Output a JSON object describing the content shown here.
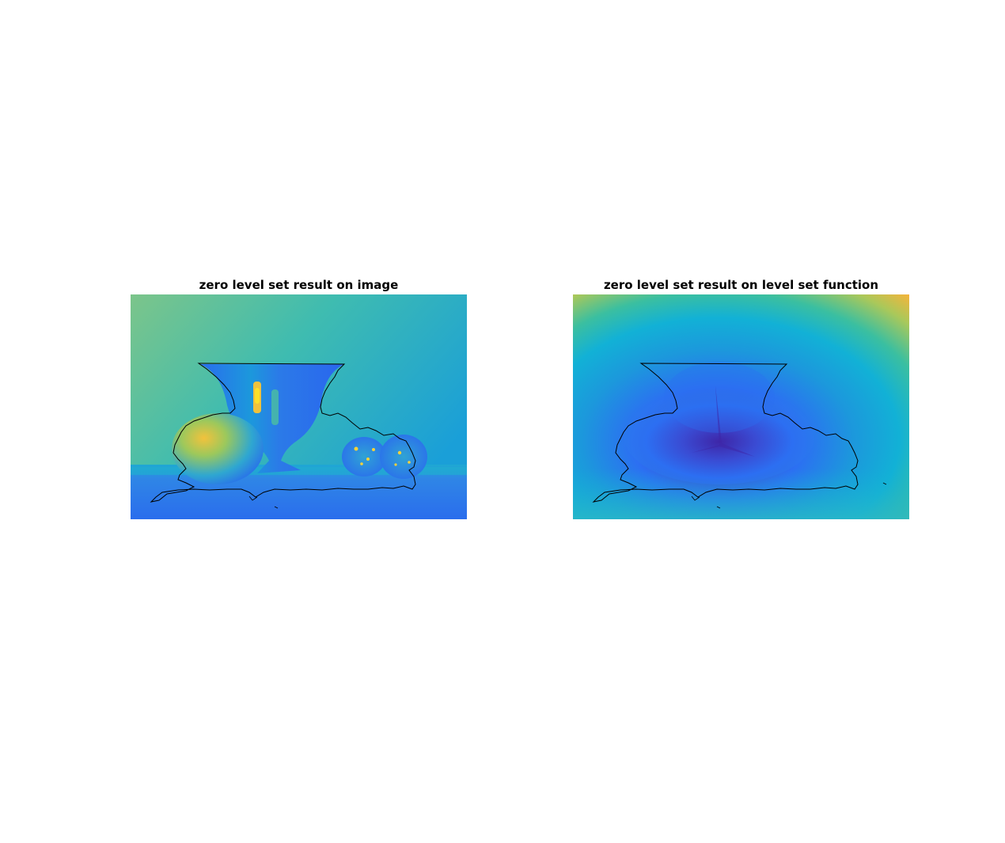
{
  "figure": {
    "panels": [
      {
        "title": "zero level set result on image"
      },
      {
        "title": "zero level set result on level set function"
      }
    ],
    "colormap": "parula",
    "colors": {
      "deep_blue": "#3e26a8",
      "blue": "#2c6ff2",
      "cyan": "#12b1d6",
      "teal": "#3bbfa0",
      "green": "#7cc86a",
      "orange": "#f7b43a",
      "yellow": "#f9fb14",
      "contour": "#000000"
    },
    "contour_level": 0
  }
}
